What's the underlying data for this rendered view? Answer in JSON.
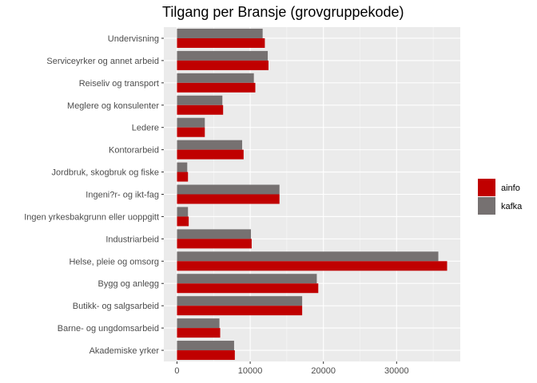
{
  "chart_data": {
    "type": "bar",
    "orientation": "horizontal",
    "title": "Tilgang per Bransje (grovgruppekode)",
    "xlabel": "",
    "ylabel": "",
    "xlim": [
      -1800,
      38700
    ],
    "xticks": [
      0,
      10000,
      20000,
      30000
    ],
    "xtick_labels": [
      "0",
      "10000",
      "20000",
      "30000"
    ],
    "grid": true,
    "legend_position": "right",
    "categories": [
      "Undervisning",
      "Serviceyrker og annet arbeid",
      "Reiseliv og transport",
      "Meglere og konsulenter",
      "Ledere",
      "Kontorarbeid",
      "Jordbruk, skogbruk og fiske",
      "Ingeni?r- og ikt-fag",
      "Ingen yrkesbakgrunn eller uoppgitt",
      "Industriarbeid",
      "Helse, pleie og omsorg",
      "Bygg og anlegg",
      "Butikk- og salgsarbeid",
      "Barne- og ungdomsarbeid",
      "Akademiske yrker"
    ],
    "series": [
      {
        "name": "ainfo",
        "color": "#c00000",
        "values": [
          12000,
          12500,
          10700,
          6300,
          3800,
          9100,
          1500,
          14000,
          1600,
          10200,
          36900,
          19300,
          17100,
          5900,
          7900
        ]
      },
      {
        "name": "kafka",
        "color": "#767171",
        "values": [
          11700,
          12400,
          10500,
          6200,
          3800,
          8900,
          1400,
          14000,
          1500,
          10100,
          35700,
          19100,
          17100,
          5800,
          7800
        ]
      }
    ]
  }
}
